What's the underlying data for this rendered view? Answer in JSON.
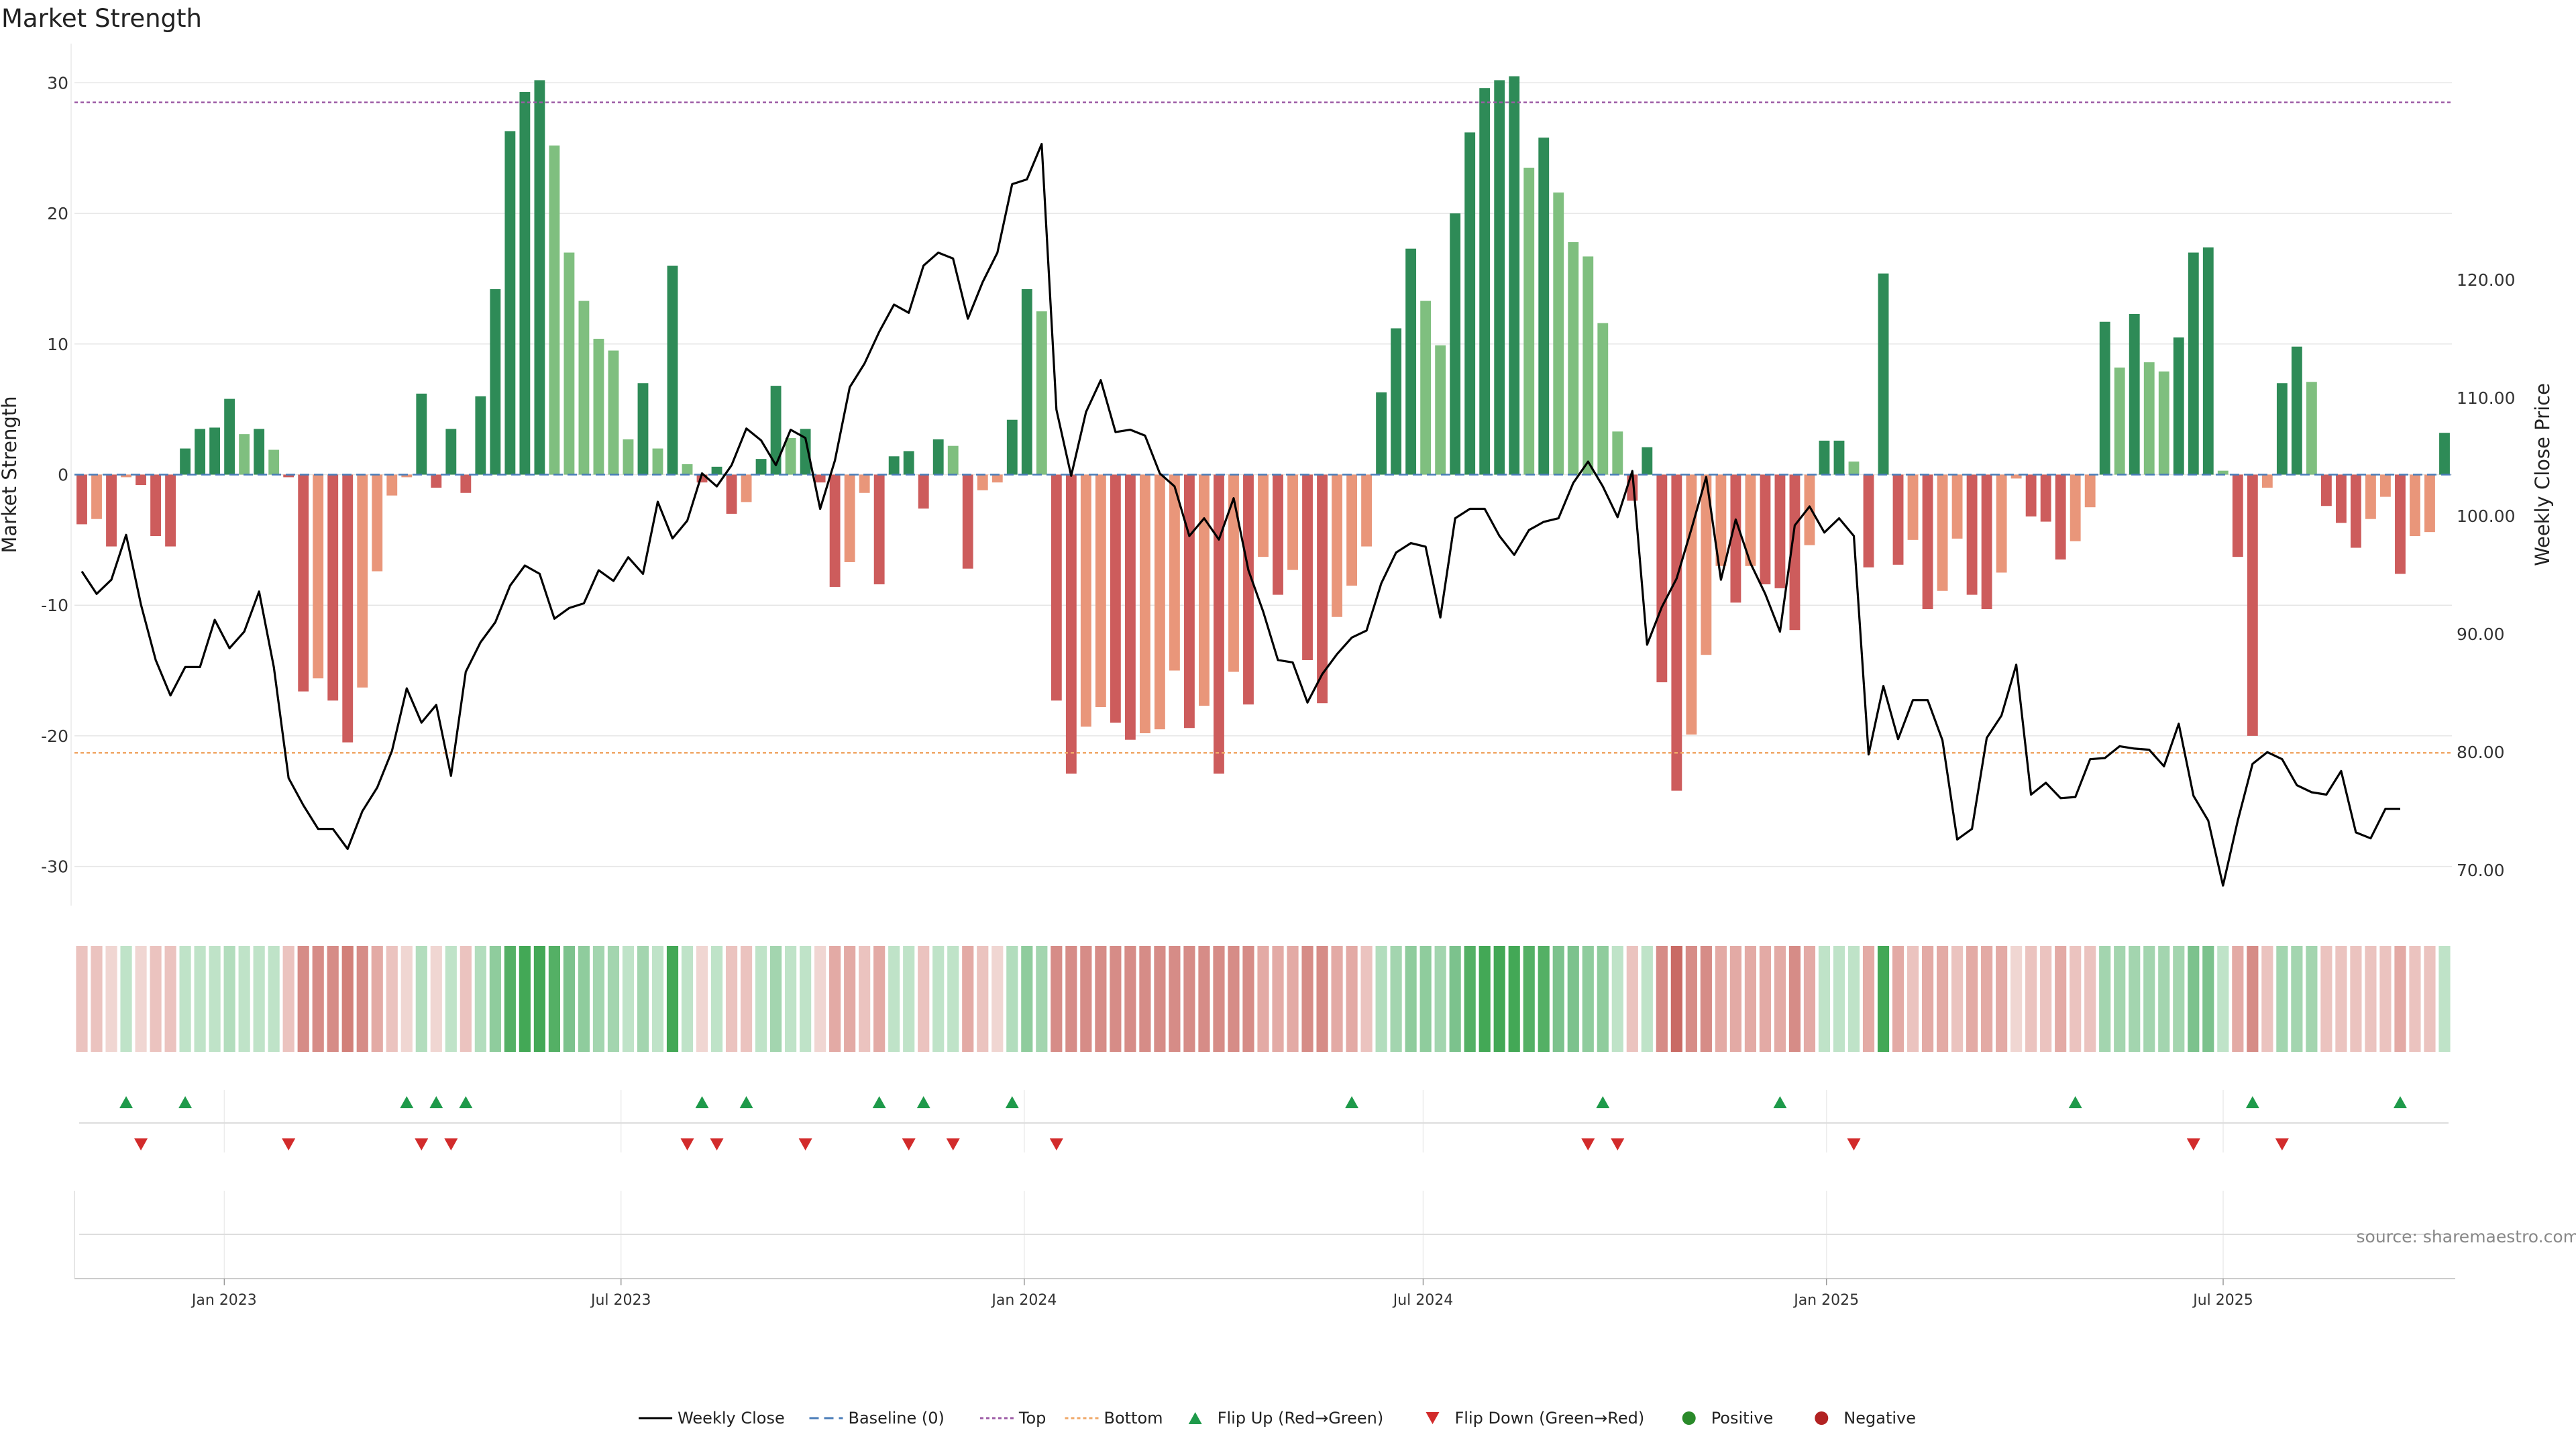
{
  "chart_data": {
    "type": "bar",
    "title": "Market Strength",
    "ylabel": "Market Strength",
    "y2label": "Weekly Close Price",
    "ylim": [
      -33,
      33
    ],
    "y2lim": [
      67,
      140
    ],
    "yticks": [
      30,
      20,
      10,
      0,
      -10,
      -20,
      -30
    ],
    "y2ticks": [
      "120.00",
      "110.00",
      "100.00",
      "90.00",
      "80.00",
      "70.00"
    ],
    "y2tick_values": [
      120,
      110,
      100,
      90,
      80,
      70
    ],
    "top_threshold": 28.5,
    "bottom_threshold": -21.3,
    "x_start": "2022-10-28",
    "x_end": "2025-10-10",
    "xtick_dates": [
      "2023-01-01",
      "2023-07-01",
      "2024-01-01",
      "2024-07-01",
      "2025-01-01",
      "2025-07-01"
    ],
    "xtick_labels": [
      "Jan 2023",
      "Jul 2023",
      "Jan 2024",
      "Jul 2024",
      "Jan 2025",
      "Jul 2025"
    ],
    "strength": [
      -3.8,
      -3.4,
      -5.5,
      -0.2,
      -0.8,
      -4.7,
      -5.5,
      2,
      3.5,
      3.6,
      5.8,
      3.1,
      3.5,
      1.9,
      -0.2,
      -16.6,
      -15.6,
      -17.3,
      -20.5,
      -16.3,
      -7.4,
      -1.6,
      -0.2,
      6.2,
      -1,
      3.5,
      -1.4,
      6,
      14.2,
      26.3,
      29.3,
      30.2,
      25.2,
      17,
      13.3,
      10.4,
      9.5,
      2.7,
      7,
      2,
      16,
      0.8,
      -0.6,
      0.6,
      -3,
      -2.1,
      1.2,
      6.8,
      2.8,
      3.5,
      -0.6,
      -8.6,
      -6.7,
      -1.4,
      -8.4,
      1.4,
      1.8,
      -2.6,
      2.7,
      2.2,
      -7.2,
      -1.2,
      -0.6,
      4.2,
      14.2,
      12.5,
      -17.3,
      -22.9,
      -19.3,
      -17.8,
      -19,
      -20.3,
      -19.8,
      -19.5,
      -15,
      -19.4,
      -17.7,
      -22.9,
      -15.1,
      -17.6,
      -6.3,
      -9.2,
      -7.3,
      -14.2,
      -17.5,
      -10.9,
      -8.5,
      -5.5,
      6.3,
      11.2,
      17.3,
      13.3,
      9.9,
      20,
      26.2,
      29.6,
      30.2,
      30.5,
      23.5,
      25.8,
      21.6,
      17.8,
      16.7,
      11.6,
      3.3,
      -2,
      2.1,
      -15.9,
      -24.2,
      -19.9,
      -13.8,
      -7,
      -9.8,
      -7,
      -8.4,
      -8.7,
      -11.9,
      -5.4,
      2.6,
      2.6,
      1,
      -7.1,
      15.4,
      -6.9,
      -5,
      -10.3,
      -8.9,
      -4.9,
      -9.2,
      -10.3,
      -7.5,
      -0.3,
      -3.2,
      -3.6,
      -6.5,
      -5.1,
      -2.5,
      11.7,
      8.2,
      12.3,
      8.6,
      7.9,
      10.5,
      17,
      17.4,
      0.3,
      -6.3,
      -20,
      -1,
      7,
      9.8,
      7.1,
      -2.4,
      -3.7,
      -5.6,
      -3.4,
      -1.7,
      -7.6,
      -4.7,
      -4.4,
      3.2
    ],
    "weekly_close": [
      95.3,
      93.4,
      94.6,
      98.4,
      92.5,
      87.8,
      84.8,
      87.2,
      87.2,
      91.2,
      88.8,
      90.2,
      93.6,
      87.2,
      77.8,
      75.5,
      73.5,
      73.5,
      71.8,
      75,
      77,
      80.1,
      85.4,
      82.5,
      84,
      78,
      86.8,
      89.3,
      91,
      94.1,
      95.8,
      95.1,
      91.3,
      92.2,
      92.6,
      95.4,
      94.5,
      96.5,
      95.1,
      101.2,
      98.1,
      99.6,
      103.6,
      102.5,
      104.3,
      107.4,
      106.4,
      104.3,
      107.3,
      106.6,
      100.6,
      104.7,
      110.9,
      112.9,
      115.6,
      117.9,
      117.2,
      121.2,
      122.3,
      121.8,
      116.7,
      119.8,
      122.3,
      128.1,
      128.5,
      131.5,
      109,
      103.4,
      108.8,
      111.5,
      107.1,
      107.3,
      106.8,
      103.6,
      102.5,
      98.3,
      99.8,
      98,
      101.5,
      95.4,
      91.9,
      87.8,
      87.6,
      84.2,
      86.6,
      88.3,
      89.7,
      90.3,
      94.3,
      96.9,
      97.7,
      97.4,
      91.4,
      99.8,
      100.6,
      100.6,
      98.3,
      96.7,
      98.8,
      99.5,
      99.8,
      102.8,
      104.6,
      102.5,
      99.9,
      103.8,
      89.1,
      92.3,
      94.7,
      98.9,
      103.3,
      94.6,
      99.7,
      96,
      93.4,
      90.2,
      99.2,
      100.8,
      98.6,
      99.8,
      98.3,
      79.8,
      85.6,
      81.1,
      84.4,
      84.4,
      81,
      72.6,
      73.5,
      81.2,
      83.1,
      87.4,
      76.4,
      77.4,
      76.1,
      76.2,
      79.4,
      79.5,
      80.5,
      80.3,
      80.2,
      78.8,
      82.4,
      76.3,
      74.2,
      68.7,
      74.2,
      79,
      80,
      79.4,
      77.2,
      76.6,
      76.4,
      78.4,
      73.2,
      72.7,
      75.2,
      75.2
    ],
    "zone_colors": [
      "#ebc3bf",
      "#ebc3bf",
      "#f0d6d2",
      "#bfe3c8",
      "#f0d6d2",
      "#ebc3bf",
      "#ebc3bf",
      "#bfe3c8",
      "#bfe3c8",
      "#bfe3c8",
      "#b2ddbd",
      "#bfe3c8",
      "#bfe3c8",
      "#bfe3c8",
      "#ebc3bf",
      "#d68c87",
      "#d68c87",
      "#d68c87",
      "#d28079",
      "#d68c87",
      "#e3aaa5",
      "#ebc3bf",
      "#f0d6d2",
      "#b2ddbd",
      "#f0d6d2",
      "#bfe3c8",
      "#ebc3bf",
      "#b2ddbd",
      "#8fcc9d",
      "#54b065",
      "#43a856",
      "#43a856",
      "#54b065",
      "#7cc28d",
      "#8fcc9d",
      "#a3d5af",
      "#a3d5af",
      "#bfe3c8",
      "#a3d5af",
      "#bfe3c8",
      "#43a856",
      "#bfe3c8",
      "#f0d6d2",
      "#bfe3c8",
      "#ebc3bf",
      "#ebc3bf",
      "#bfe3c8",
      "#a3d5af",
      "#bfe3c8",
      "#bfe3c8",
      "#f0d6d2",
      "#e3aaa5",
      "#e3aaa5",
      "#ebc3bf",
      "#e3aaa5",
      "#bfe3c8",
      "#bfe3c8",
      "#ebc3bf",
      "#bfe3c8",
      "#bfe3c8",
      "#e3aaa5",
      "#ebc3bf",
      "#f0d6d2",
      "#b2ddbd",
      "#8fcc9d",
      "#a3d5af",
      "#d68c87",
      "#d68c87",
      "#d68c87",
      "#d68c87",
      "#d68c87",
      "#d68c87",
      "#d68c87",
      "#d68c87",
      "#d68c87",
      "#d68c87",
      "#d68c87",
      "#d68c87",
      "#d68c87",
      "#d68c87",
      "#e3aaa5",
      "#e3aaa5",
      "#e3aaa5",
      "#d68c87",
      "#d68c87",
      "#e3aaa5",
      "#e3aaa5",
      "#ebc3bf",
      "#b2ddbd",
      "#a3d5af",
      "#8fcc9d",
      "#8fcc9d",
      "#a3d5af",
      "#7cc28d",
      "#54b065",
      "#43a856",
      "#43a856",
      "#43a856",
      "#54b065",
      "#54b065",
      "#7cc28d",
      "#7cc28d",
      "#8fcc9d",
      "#8fcc9d",
      "#bfe3c8",
      "#ebc3bf",
      "#bfe3c8",
      "#d68c87",
      "#c96a64",
      "#d68c87",
      "#d68c87",
      "#e3aaa5",
      "#e3aaa5",
      "#e3aaa5",
      "#e3aaa5",
      "#e3aaa5",
      "#d68c87",
      "#e3aaa5",
      "#bfe3c8",
      "#bfe3c8",
      "#bfe3c8",
      "#e3aaa5",
      "#43a856",
      "#e3aaa5",
      "#ebc3bf",
      "#e3aaa5",
      "#e3aaa5",
      "#ebc3bf",
      "#e3aaa5",
      "#e3aaa5",
      "#e3aaa5",
      "#f0d6d2",
      "#ebc3bf",
      "#ebc3bf",
      "#e3aaa5",
      "#ebc3bf",
      "#ebc3bf",
      "#a3d5af",
      "#a3d5af",
      "#a3d5af",
      "#a3d5af",
      "#a3d5af",
      "#a3d5af",
      "#7cc28d",
      "#7cc28d",
      "#bfe3c8",
      "#e3aaa5",
      "#d68c87",
      "#ebc3bf",
      "#a3d5af",
      "#a3d5af",
      "#a3d5af",
      "#ebc3bf",
      "#ebc3bf",
      "#ebc3bf",
      "#ebc3bf",
      "#ebc3bf",
      "#e3aaa5",
      "#ebc3bf",
      "#ebc3bf",
      "#bfe3c8"
    ],
    "flip_up_weeks": [
      3,
      7,
      22,
      24,
      26,
      42,
      45,
      54,
      57,
      63,
      86,
      103,
      115,
      135,
      147,
      157
    ],
    "flip_down_weeks": [
      4,
      14,
      23,
      25,
      41,
      43,
      49,
      56,
      59,
      66,
      102,
      104,
      120,
      143,
      149
    ],
    "colors": {
      "strong_green": "#2e8b57",
      "light_green": "#7fbf7f",
      "strong_red": "#cd5c5c",
      "light_red": "#e9967a",
      "baseline": "#4a7db8",
      "top_line": "#9c5ba5",
      "bottom_line": "#f0a868",
      "price_line": "#000000",
      "flip_up": "#1e9a4a",
      "flip_down": "#d22b2b",
      "positive": "#2a8a2a",
      "negative": "#b22222"
    },
    "legend": [
      {
        "label": "Weekly Close",
        "symbol": "line-solid"
      },
      {
        "label": "Baseline (0)",
        "symbol": "line-dashed-blue"
      },
      {
        "label": "Top",
        "symbol": "line-dotted-purple"
      },
      {
        "label": "Bottom",
        "symbol": "line-dotted-orange"
      },
      {
        "label": "Flip Up (Red→Green)",
        "symbol": "triangle-up"
      },
      {
        "label": "Flip Down (Green→Red)",
        "symbol": "triangle-down"
      },
      {
        "label": "Positive",
        "symbol": "dot-green"
      },
      {
        "label": "Negative",
        "symbol": "dot-red"
      }
    ],
    "legend_placement": "bottom-center",
    "source": "source: sharemaestro.com"
  }
}
